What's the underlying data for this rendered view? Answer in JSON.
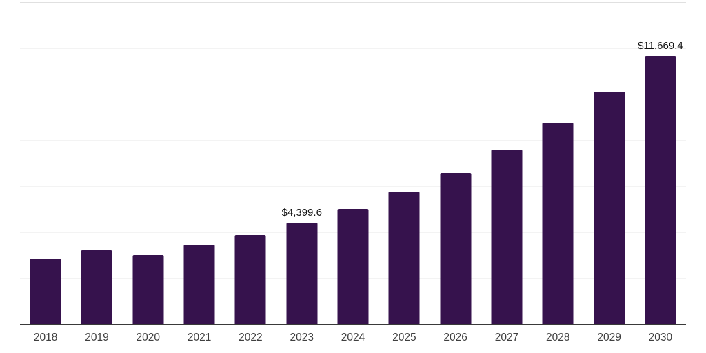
{
  "chart_data": {
    "type": "bar",
    "title": "",
    "xlabel": "",
    "ylabel": "",
    "categories": [
      "2018",
      "2019",
      "2020",
      "2021",
      "2022",
      "2023",
      "2024",
      "2025",
      "2026",
      "2027",
      "2028",
      "2029",
      "2030"
    ],
    "values": [
      2840,
      3220,
      2990,
      3440,
      3860,
      4399.6,
      5000,
      5750,
      6570,
      7580,
      8750,
      10100,
      11669.4
    ],
    "data_labels": [
      "",
      "",
      "",
      "",
      "",
      "$4,399.6",
      "",
      "",
      "",
      "",
      "",
      "",
      "$11,669.4"
    ],
    "ylim": [
      0,
      14000
    ],
    "gridline_interval": 2000,
    "grid": "horizontal, very light; topmost line slightly darker; no y-axis tick labels",
    "legend_position": "none",
    "bar_color": "#36124d",
    "axis_line_color": "#3a3a3a",
    "gridline_color": "#f3f3f3",
    "top_gridline_color": "#e0e0e0",
    "tick_label_color": "#3f3f3f",
    "data_label_color": "#111111"
  }
}
